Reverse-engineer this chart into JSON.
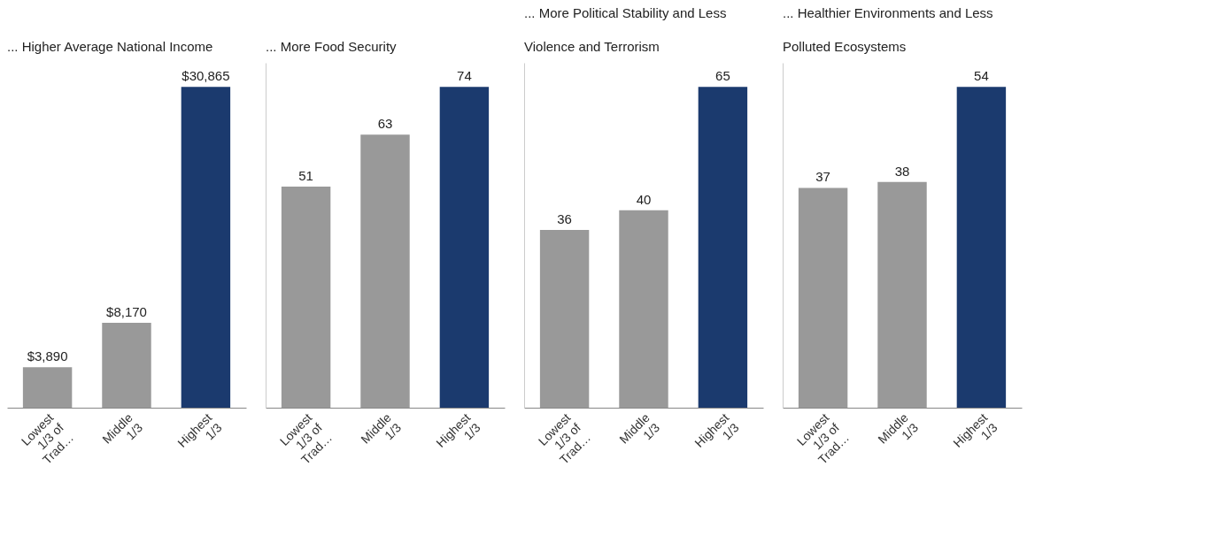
{
  "chart_data": [
    {
      "type": "bar",
      "title": "... Higher Average National Income",
      "categories": [
        "Lowest 1/3 of Trad…",
        "Middle 1/3",
        "Highest 1/3"
      ],
      "values": [
        3890,
        8170,
        30865
      ],
      "value_labels": [
        "$3,890",
        "$8,170",
        "$30,865"
      ],
      "colors": [
        "#999999",
        "#999999",
        "#1b3a6e"
      ],
      "tick_labels": "x"
    },
    {
      "type": "bar",
      "title": "... More Food Security",
      "categories": [
        "Lowest 1/3 of Trad…",
        "Middle 1/3",
        "Highest 1/3"
      ],
      "values": [
        51,
        63,
        74
      ],
      "data_labels": true,
      "colors": [
        "#999999",
        "#999999",
        "#1b3a6e"
      ],
      "tick_labels": "x"
    },
    {
      "type": "bar",
      "title": "... More Political Stability and Less Violence and Terrorism",
      "categories": [
        "Lowest 1/3 of Trad…",
        "Middle 1/3",
        "Highest 1/3"
      ],
      "values": [
        36,
        40,
        65
      ],
      "data_labels": true,
      "colors": [
        "#999999",
        "#999999",
        "#1b3a6e"
      ],
      "tick_labels": "x"
    },
    {
      "type": "bar",
      "title": "... Healthier Environments and Less Polluted Ecosystems",
      "categories": [
        "Lowest 1/3 of Trad…",
        "Middle 1/3",
        "Highest 1/3"
      ],
      "values": [
        37,
        38,
        54
      ],
      "data_labels": true,
      "colors": [
        "#999999",
        "#999999",
        "#1b3a6e"
      ],
      "tick_labels": "x"
    }
  ]
}
